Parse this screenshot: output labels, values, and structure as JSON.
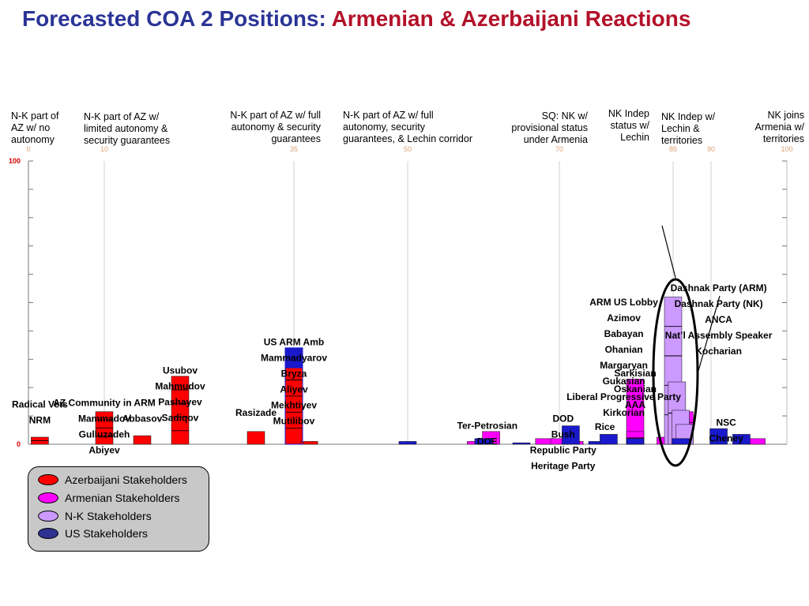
{
  "title": {
    "part1": "Forecasted COA 2 Positions: ",
    "part2": "Armenian & Azerbaijani Reactions"
  },
  "position_labels": [
    {
      "text": "N-K part of\nAZ w/ no\nautonomy"
    },
    {
      "text": "N-K part of AZ w/\nlimited autonomy &\nsecurity guarantees"
    },
    {
      "text": "N-K part of AZ w/ full\nautonomy & security\nguarantees"
    },
    {
      "text": "N-K part of AZ w/ full\nautonomy, security\nguarantees, & Lechin corridor"
    },
    {
      "text": "SQ: NK w/\nprovisional status\nunder Armenia"
    },
    {
      "text": "NK Indep\nstatus w/\nLechin"
    },
    {
      "text": "NK Indep w/\nLechin &\nterritories"
    },
    {
      "text": "NK joins\nArmenia w/\nterritories"
    }
  ],
  "legend": [
    {
      "label": "Azerbaijani Stakeholders",
      "color": "#ff0000"
    },
    {
      "label": "Armenian Stakeholders",
      "color": "#ff00ff"
    },
    {
      "label": "N-K Stakeholders",
      "color": "#cc99ff"
    },
    {
      "label": "US Stakeholders",
      "color": "#2e3192"
    }
  ],
  "colors": {
    "azerbaijani": "#ff0000",
    "armenian": "#ff00ff",
    "nk": "#cc99ff",
    "us": "#1a1acc",
    "title_blue": "#2b3496",
    "title_red": "#b3112a"
  },
  "chart_data": {
    "type": "bar",
    "xlim": [
      0,
      100
    ],
    "ylim": [
      0,
      100
    ],
    "x_ticks": [
      0,
      10,
      35,
      50,
      70,
      85,
      90,
      100
    ],
    "y_ticks": [
      0,
      100
    ],
    "grid": "vertical at x ticks",
    "legend_position": "bottom-left",
    "series": [
      {
        "name": "Azerbaijani Stakeholders",
        "group": "azerbaijani",
        "bars": [
          {
            "x": 1.5,
            "value": 2.5,
            "segments": 2
          },
          {
            "x": 10,
            "value": 11.5,
            "segments": 4
          },
          {
            "x": 15,
            "value": 3,
            "segments": 1
          },
          {
            "x": 20,
            "value": 24,
            "segments": 5
          },
          {
            "x": 30,
            "value": 4.5,
            "segments": 1
          },
          {
            "x": 35,
            "value": 34,
            "segments": 6
          },
          {
            "x": 37,
            "value": 1,
            "segments": 1
          }
        ]
      },
      {
        "name": "Armenian Stakeholders",
        "group": "armenian",
        "bars": [
          {
            "x": 59,
            "value": 1,
            "segments": 1
          },
          {
            "x": 61,
            "value": 4.5,
            "segments": 1
          },
          {
            "x": 68,
            "value": 2,
            "segments": 1
          },
          {
            "x": 70,
            "value": 2,
            "segments": 1
          },
          {
            "x": 72,
            "value": 1,
            "segments": 1
          },
          {
            "x": 80,
            "value": 23,
            "segments": 1
          },
          {
            "x": 80,
            "value": 4.5,
            "segments": 2
          },
          {
            "x": 84,
            "value": 2.5,
            "segments": 1
          },
          {
            "x": 86.5,
            "value": 11.5,
            "segments": 3
          },
          {
            "x": 86,
            "value": 9,
            "segments": 1
          },
          {
            "x": 96,
            "value": 2,
            "segments": 1
          }
        ]
      },
      {
        "name": "N-K Stakeholders",
        "group": "nk",
        "bars": [
          {
            "x": 85,
            "value": 52,
            "segments": 5
          },
          {
            "x": 85.5,
            "value": 22,
            "segments": 2
          },
          {
            "x": 86,
            "value": 12,
            "segments": 1
          },
          {
            "x": 86.5,
            "value": 7,
            "segments": 1
          }
        ]
      },
      {
        "name": "US Stakeholders",
        "group": "us",
        "bars": [
          {
            "x": 35,
            "value": 34,
            "fill_top": 7,
            "segments": 1
          },
          {
            "x": 50,
            "value": 1,
            "segments": 1
          },
          {
            "x": 60,
            "value": 2,
            "segments": 1
          },
          {
            "x": 65,
            "value": 0.5,
            "segments": 1
          },
          {
            "x": 71.5,
            "value": 6.5,
            "segments": 1
          },
          {
            "x": 75,
            "value": 1,
            "segments": 1
          },
          {
            "x": 76.5,
            "value": 3.5,
            "segments": 1
          },
          {
            "x": 80,
            "value": 2,
            "segments": 1
          },
          {
            "x": 86,
            "value": 2,
            "segments": 1
          },
          {
            "x": 91,
            "value": 5.5,
            "segments": 1
          },
          {
            "x": 94,
            "value": 3.5,
            "segments": 1
          }
        ]
      }
    ],
    "annotations": [
      {
        "lines": [
          "Radical Vets",
          "NRM"
        ],
        "x": 1.5,
        "y": 13
      },
      {
        "lines": [
          "AZ Community in ARM",
          "Mammadov",
          "Gulluzadeh",
          "Abiyev"
        ],
        "x": 10,
        "y": 13.5
      },
      {
        "lines": [
          "Abbasov"
        ],
        "x": 15,
        "y": 8
      },
      {
        "lines": [
          "Usubov",
          "Mahmudov",
          "Pashayev",
          "Sadiqov"
        ],
        "x": 20,
        "y": 25
      },
      {
        "lines": [
          "Rasizade"
        ],
        "x": 30,
        "y": 10
      },
      {
        "lines": [
          "US ARM Amb",
          "Mammadyarov",
          "Bryza",
          "Aliyev",
          "Mekhtiyev",
          "Mutilibov"
        ],
        "x": 35,
        "y": 35
      },
      {
        "lines": [
          "Ter-Petrosian",
          "DOE"
        ],
        "x": 60.5,
        "y": 5.5
      },
      {
        "lines": [
          "DOD",
          "Bush",
          "Republic Party",
          "Heritage Party"
        ],
        "x": 70.5,
        "y": 8
      },
      {
        "lines": [
          "Rice"
        ],
        "x": 76,
        "y": 5
      },
      {
        "lines": [
          "Sarkisian",
          "Oskanian",
          "AAA"
        ],
        "x": 80,
        "y": 24
      },
      {
        "lines": [
          "ARM US Lobby",
          "Azimov",
          "Babayan",
          "Ohanian",
          "Margaryan",
          "Gukasian",
          "Liberal Progressive Party",
          "Kirkorian"
        ],
        "x": 78.5,
        "y": 49
      },
      {
        "lines": [
          "Dashnak Party (ARM)",
          "Dashnak Party (NK)",
          "ANCA",
          "Nat’l Assembly Speaker",
          "Kocharian"
        ],
        "x": 91,
        "y": 54
      },
      {
        "lines": [
          "NSC",
          "Cheney"
        ],
        "x": 92,
        "y": 6.5
      }
    ]
  }
}
